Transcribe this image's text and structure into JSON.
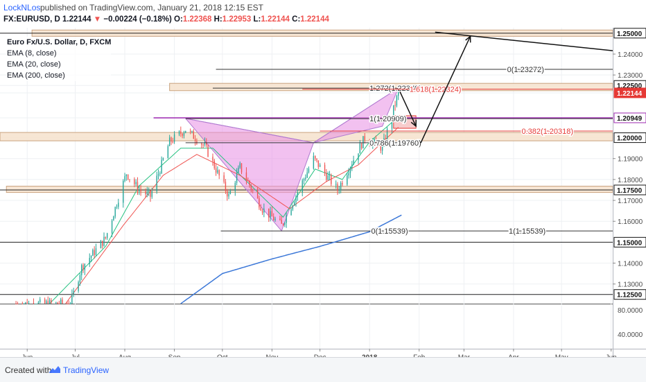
{
  "header": {
    "author": "LockNLos",
    "published_text": "published on TradingView.com, January 21, 2018 12:15 EST",
    "symbol": "FX:EURUSD, D",
    "last": "1.22144",
    "change": "−0.00224 (−0.18%)",
    "o_label": "O:",
    "o_value": "1.22368",
    "h_label": "H:",
    "h_value": "1.22953",
    "l_label": "L:",
    "l_value": "1.22144",
    "c_label": "C:",
    "c_value": "1.22144"
  },
  "legend": {
    "title": "Euro Fx/U.S. Dollar, D, FXCM",
    "ema1": "EMA (8, close)",
    "ema2": "EMA (20, close)",
    "ema3": "EMA (200, close)"
  },
  "footer": {
    "created_with": "Created with",
    "brand": "TradingView"
  },
  "colors": {
    "bull": "#26a69a",
    "bear": "#ef5350",
    "ema8": "#26c281",
    "ema20": "#ef5350",
    "ema200": "#3c78d8",
    "zone_fill": "#f6e3cf",
    "zone_stroke": "#c9a27e",
    "pattern_fill": "#e88ee3",
    "fib_red": "#e53935",
    "purple": "#9c27b0"
  },
  "chart_data": {
    "type": "candlestick",
    "x_axis": {
      "labels": [
        "Jun",
        "Jul",
        "Aug",
        "Sep",
        "Oct",
        "Nov",
        "Dec",
        "2018",
        "Feb",
        "Mar",
        "Apr",
        "May",
        "Jun"
      ],
      "dates": [
        "2017-06-01",
        "2017-07-01",
        "2017-08-01",
        "2017-09-01",
        "2017-10-01",
        "2017-11-01",
        "2017-12-01",
        "2018-01-01",
        "2018-02-01",
        "2018-03-01",
        "2018-04-01",
        "2018-05-01",
        "2018-06-01"
      ],
      "range": [
        "2017-05-15",
        "2018-06-02"
      ]
    },
    "y_axis": {
      "range": [
        1.1206,
        1.2526
      ],
      "tick_values": [
        1.13,
        1.14,
        1.16,
        1.17,
        1.18,
        1.19,
        1.23,
        1.24
      ],
      "tick_labels": [
        "1.13000",
        "1.14000",
        "1.16000",
        "1.17000",
        "1.18000",
        "1.19000",
        "1.23000",
        "1.24000"
      ],
      "highlighted_levels": [
        {
          "value": 1.25,
          "label": "1.25000"
        },
        {
          "value": 1.225,
          "label": "1.22500"
        },
        {
          "value": 1.22144,
          "label": "1.22144",
          "kind": "last-price"
        },
        {
          "value": 1.20949,
          "label": "1.20949",
          "kind": "purple-line"
        },
        {
          "value": 1.2,
          "label": "1.20000"
        },
        {
          "value": 1.175,
          "label": "1.17500"
        },
        {
          "value": 1.15,
          "label": "1.15000"
        },
        {
          "value": 1.125,
          "label": "1.12500"
        }
      ]
    },
    "volume_axis": {
      "tick_labels": [
        "80.0000",
        "40.0000"
      ]
    },
    "candles_keyframes": [
      [
        "2017-05-25",
        1.1205
      ],
      [
        "2017-06-28",
        1.1205
      ],
      [
        "2017-07-05",
        1.138
      ],
      [
        "2017-07-20",
        1.152
      ],
      [
        "2017-08-02",
        1.183
      ],
      [
        "2017-08-10",
        1.175
      ],
      [
        "2017-08-17",
        1.172
      ],
      [
        "2017-08-29",
        1.198
      ],
      [
        "2017-09-08",
        1.204
      ],
      [
        "2017-09-20",
        1.196
      ],
      [
        "2017-10-05",
        1.172
      ],
      [
        "2017-10-12",
        1.186
      ],
      [
        "2017-10-26",
        1.166
      ],
      [
        "2017-11-07",
        1.158
      ],
      [
        "2017-11-27",
        1.19
      ],
      [
        "2017-12-12",
        1.175
      ],
      [
        "2017-12-29",
        1.2
      ],
      [
        "2018-01-09",
        1.195
      ],
      [
        "2018-01-19",
        1.2215
      ]
    ],
    "ema8_keyframes": [
      [
        "2017-06-15",
        1.1206
      ],
      [
        "2017-07-20",
        1.148
      ],
      [
        "2017-08-10",
        1.177
      ],
      [
        "2017-09-05",
        1.195
      ],
      [
        "2017-09-25",
        1.195
      ],
      [
        "2017-10-15",
        1.18
      ],
      [
        "2017-11-08",
        1.162
      ],
      [
        "2017-11-28",
        1.185
      ],
      [
        "2017-12-15",
        1.18
      ],
      [
        "2018-01-01",
        1.198
      ],
      [
        "2018-01-19",
        1.21
      ]
    ],
    "ema20_keyframes": [
      [
        "2017-06-25",
        1.1206
      ],
      [
        "2017-07-31",
        1.158
      ],
      [
        "2017-08-25",
        1.182
      ],
      [
        "2017-09-15",
        1.192
      ],
      [
        "2017-10-12",
        1.182
      ],
      [
        "2017-11-12",
        1.166
      ],
      [
        "2017-12-05",
        1.179
      ],
      [
        "2017-12-25",
        1.187
      ],
      [
        "2018-01-19",
        1.205
      ]
    ],
    "ema200_keyframes": [
      [
        "2017-09-05",
        1.1206
      ],
      [
        "2017-10-01",
        1.135
      ],
      [
        "2017-11-01",
        1.142
      ],
      [
        "2017-12-01",
        1.148
      ],
      [
        "2018-01-01",
        1.155
      ],
      [
        "2018-01-21",
        1.163
      ]
    ],
    "zones": [
      {
        "from": "2017-06-04",
        "to": "2018-06-02",
        "low": 1.2485,
        "high": 1.2515
      },
      {
        "from": "2017-08-29",
        "to": "2018-06-02",
        "low": 1.2225,
        "high": 1.226
      },
      {
        "from": "2017-05-15",
        "to": "2018-06-02",
        "low": 1.1985,
        "high": 1.2025
      },
      {
        "from": "2017-05-19",
        "to": "2018-06-02",
        "low": 1.1738,
        "high": 1.1768
      },
      {
        "from": "2018-01-16",
        "to": "2018-01-30",
        "low": 1.2045,
        "high": 1.2105,
        "color": "red"
      }
    ],
    "horizontal_lines": [
      {
        "value": 1.25,
        "from": "2017-05-15",
        "to": "2018-06-02"
      },
      {
        "value": 1.175,
        "from": "2017-05-15",
        "to": "2018-06-02"
      },
      {
        "value": 1.15,
        "from": "2017-05-15",
        "to": "2018-06-02"
      },
      {
        "value": 1.125,
        "from": "2017-05-15",
        "to": "2018-06-02"
      },
      {
        "value": 1.2095,
        "from": "2017-08-19",
        "to": "2018-06-02",
        "color": "purple"
      }
    ],
    "pattern": {
      "points": [
        [
          "2017-09-08",
          1.2092
        ],
        [
          "2017-11-07",
          1.1554
        ],
        [
          "2017-11-27",
          1.1976
        ],
        [
          "2018-01-09",
          1.2055
        ],
        [
          "2018-01-19",
          1.2237
        ]
      ],
      "note": "harmonic pattern drawn as two filled triangles"
    },
    "fib_levels": [
      {
        "label": "0(1.23272)",
        "value": 1.2327,
        "from": "2017-09-27",
        "to": "2018-06-02",
        "label_at": "2018-03-28"
      },
      {
        "label": "1.272(1.22370)",
        "value": 1.2237,
        "from": "2017-09-25",
        "to": "2018-01-21",
        "label_at": "2018-01-01"
      },
      {
        "label": "1.618(1.22324)",
        "value": 1.2232,
        "from": "2017-11-20",
        "to": "2018-06-02",
        "label_at": "2018-01-26",
        "color": "red"
      },
      {
        "label": "1(1.20909)",
        "value": 1.2091,
        "from": "2017-09-08",
        "to": "2018-06-02",
        "label_at": "2018-01-01"
      },
      {
        "label": "0.382(1.20318)",
        "value": 1.2032,
        "from": "2017-12-01",
        "to": "2018-06-02",
        "label_at": "2018-04-06",
        "color": "red"
      },
      {
        "label": "0.786(1.19760)",
        "value": 1.1976,
        "from": "2017-09-08",
        "to": "2018-01-21",
        "label_at": "2018-01-01"
      },
      {
        "label": "0(1.15539)",
        "value": 1.1554,
        "from": "2017-09-30",
        "to": "2018-02-02",
        "label_at": "2018-01-02"
      },
      {
        "label": "1(1.15539)",
        "value": 1.1554,
        "from": "2018-02-02",
        "to": "2018-06-02",
        "label_at": "2018-03-29"
      }
    ],
    "trendline": {
      "from": [
        "2018-02-11",
        1.2505
      ],
      "to": [
        "2018-06-02",
        1.2416
      ]
    },
    "arrows": [
      {
        "from": [
          "2018-01-20",
          1.222
        ],
        "to": [
          "2018-01-30",
          1.2055
        ]
      },
      {
        "from": [
          "2018-02-02",
          1.1975
        ],
        "to": [
          "2018-03-05",
          1.2485
        ]
      }
    ],
    "grid": true
  }
}
